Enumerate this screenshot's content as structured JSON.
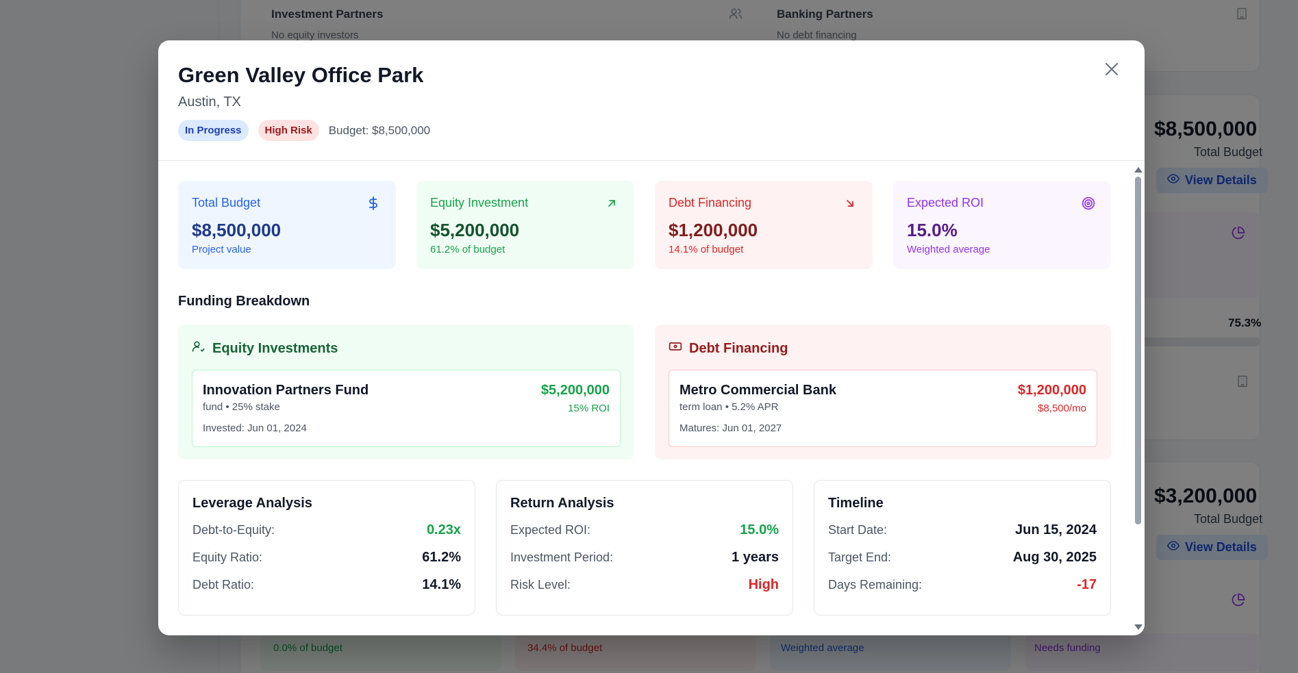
{
  "background": {
    "partners_label": "Investment Partners",
    "partners_sub": "No equity investors",
    "banking_label": "Banking Partners",
    "banking_sub": "No debt financing",
    "card1_budget": "$8,500,000",
    "card1_budget_label": "Total Budget",
    "card1_view": "View Details",
    "card1_progress": "75.3%",
    "card2_budget": "$3,200,000",
    "card2_budget_label": "Total Budget",
    "card2_view": "View Details",
    "bottom_1": "0.0% of budget",
    "bottom_2": "34.4% of budget",
    "bottom_3": "Weighted average",
    "bottom_4": "Needs funding"
  },
  "modal": {
    "title": "Green Valley Office Park",
    "location": "Austin, TX",
    "status_badge": "In Progress",
    "risk_badge": "High Risk",
    "budget_text": "Budget: $8,500,000",
    "close_glyph": "×"
  },
  "stats": [
    {
      "label": "Total Budget",
      "value": "$8,500,000",
      "sub": "Project value",
      "icon": "dollar-icon"
    },
    {
      "label": "Equity Investment",
      "value": "$5,200,000",
      "sub": "61.2% of budget",
      "icon": "arrow-up-right-icon"
    },
    {
      "label": "Debt Financing",
      "value": "$1,200,000",
      "sub": "14.1% of budget",
      "icon": "arrow-down-right-icon"
    },
    {
      "label": "Expected ROI",
      "value": "15.0%",
      "sub": "Weighted average",
      "icon": "target-icon"
    }
  ],
  "funding": {
    "title": "Funding Breakdown",
    "equity": {
      "heading": "Equity Investments",
      "name": "Innovation Partners Fund",
      "meta": "fund • 25% stake",
      "date": "Invested: Jun 01, 2024",
      "amount": "$5,200,000",
      "sub": "15% ROI"
    },
    "debt": {
      "heading": "Debt Financing",
      "name": "Metro Commercial Bank",
      "meta": "term loan • 5.2% APR",
      "date": "Matures: Jun 01, 2027",
      "amount": "$1,200,000",
      "sub": "$8,500/mo"
    }
  },
  "analysis": [
    {
      "title": "Leverage Analysis",
      "rows": [
        {
          "label": "Debt-to-Equity:",
          "value": "0.23x"
        },
        {
          "label": "Equity Ratio:",
          "value": "61.2%"
        },
        {
          "label": "Debt Ratio:",
          "value": "14.1%"
        }
      ]
    },
    {
      "title": "Return Analysis",
      "rows": [
        {
          "label": "Expected ROI:",
          "value": "15.0%"
        },
        {
          "label": "Investment Period:",
          "value": "1 years"
        },
        {
          "label": "Risk Level:",
          "value": "High"
        }
      ]
    },
    {
      "title": "Timeline",
      "rows": [
        {
          "label": "Start Date:",
          "value": "Jun 15, 2024"
        },
        {
          "label": "Target End:",
          "value": "Aug 30, 2025"
        },
        {
          "label": "Days Remaining:",
          "value": "-17"
        }
      ]
    }
  ],
  "colors": {
    "positive": "#16a34a",
    "negative": "#dc2626",
    "brand_blue": "#2563eb"
  }
}
